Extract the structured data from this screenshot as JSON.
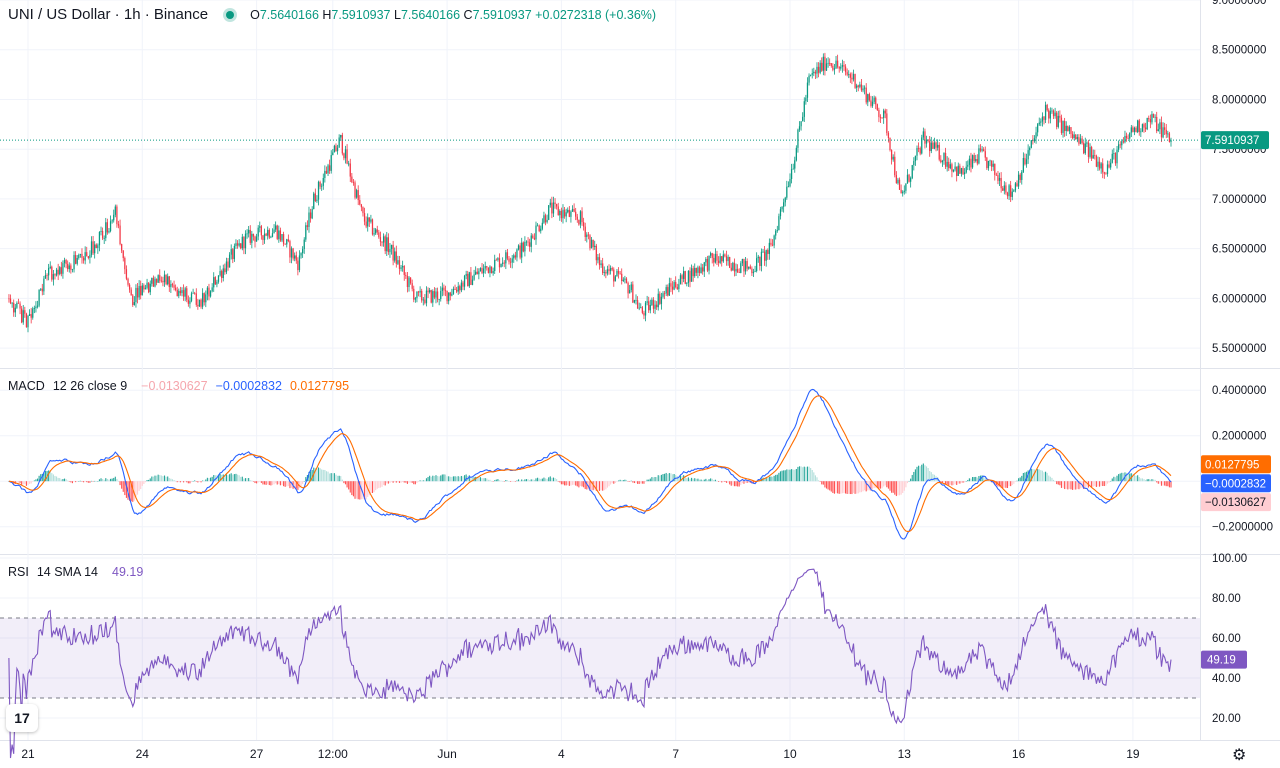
{
  "header": {
    "symbol_title": "UNI / US Dollar · 1h · Binance",
    "o_label": "O",
    "o_value": "7.5640166",
    "h_label": "H",
    "h_value": "7.5910937",
    "l_label": "L",
    "l_value": "7.5640166",
    "c_label": "C",
    "c_value": "7.5910937",
    "change": "+0.0272318 (+0.36%)",
    "up_color": "#089981",
    "down_color": "#f23645"
  },
  "macd_legend": {
    "name": "MACD",
    "params": "12 26 close 9",
    "hist": "−0.0130627",
    "macd": "−0.0002832",
    "signal": "0.0127795"
  },
  "rsi_legend": {
    "name": "RSI",
    "params": "14 SMA 14",
    "value": "49.19"
  },
  "chart_data": [
    {
      "type": "candlestick",
      "title": "UNI / US Dollar · 1h · Binance",
      "last_price": 7.5910937,
      "last_price_label": "7.5910937",
      "ylim": [
        5.3,
        9.0
      ],
      "y_ticks": [
        5.5,
        6.0,
        6.5,
        7.0,
        7.5,
        8.0,
        8.5,
        9.0
      ],
      "y_tick_labels": [
        "5.5000000",
        "6.0000000",
        "6.5000000",
        "7.0000000",
        "7.5000000",
        "8.0000000",
        "8.5000000",
        "9.0000000"
      ],
      "x_tick_labels": [
        "21",
        "24",
        "27",
        "12:00",
        "Jun",
        "4",
        "7",
        "10",
        "13",
        "16",
        "19"
      ],
      "x_tick_positions": [
        0.5,
        3.5,
        6.5,
        8.5,
        11.5,
        14.5,
        17.5,
        20.5,
        23.5,
        26.5,
        29.5
      ],
      "price_path": [
        [
          0.0,
          6.0
        ],
        [
          0.5,
          5.75
        ],
        [
          1.0,
          6.25
        ],
        [
          2.0,
          6.4
        ],
        [
          2.8,
          6.85
        ],
        [
          3.2,
          6.0
        ],
        [
          4.0,
          6.2
        ],
        [
          5.0,
          5.95
        ],
        [
          5.8,
          6.4
        ],
        [
          6.2,
          6.6
        ],
        [
          7.0,
          6.7
        ],
        [
          7.6,
          6.35
        ],
        [
          8.0,
          7.0
        ],
        [
          8.7,
          7.6
        ],
        [
          9.3,
          6.8
        ],
        [
          10.0,
          6.5
        ],
        [
          10.7,
          6.0
        ],
        [
          11.5,
          6.05
        ],
        [
          12.5,
          6.3
        ],
        [
          13.5,
          6.5
        ],
        [
          14.2,
          6.9
        ],
        [
          15.0,
          6.8
        ],
        [
          15.5,
          6.35
        ],
        [
          16.3,
          6.1
        ],
        [
          16.6,
          5.85
        ],
        [
          17.5,
          6.15
        ],
        [
          18.5,
          6.4
        ],
        [
          19.5,
          6.3
        ],
        [
          20.0,
          6.5
        ],
        [
          20.6,
          7.4
        ],
        [
          21.0,
          8.2
        ],
        [
          21.5,
          8.4
        ],
        [
          22.2,
          8.2
        ],
        [
          23.0,
          7.8
        ],
        [
          23.4,
          7.0
        ],
        [
          24.0,
          7.6
        ],
        [
          25.0,
          7.25
        ],
        [
          25.5,
          7.45
        ],
        [
          26.3,
          7.05
        ],
        [
          26.8,
          7.5
        ],
        [
          27.2,
          7.9
        ],
        [
          28.0,
          7.6
        ],
        [
          28.8,
          7.3
        ],
        [
          29.5,
          7.7
        ],
        [
          30.0,
          7.8
        ],
        [
          30.5,
          7.59
        ]
      ]
    },
    {
      "type": "line",
      "title": "MACD 12 26 close 9",
      "ylim": [
        -0.32,
        0.48
      ],
      "y_ticks": [
        -0.2,
        0.0,
        0.2,
        0.4
      ],
      "y_tick_labels": [
        "−0.2000000",
        "",
        "0.2000000",
        "0.4000000"
      ],
      "series": [
        {
          "name": "MACD",
          "color": "#2962ff",
          "last": -0.0002832,
          "last_label": "−0.0002832"
        },
        {
          "name": "Signal",
          "color": "#ff6d00",
          "last": 0.0127795,
          "last_label": "0.0127795"
        },
        {
          "name": "Histogram",
          "color": "#26a69a",
          "last": -0.0130627,
          "last_label": "−0.0130627"
        }
      ]
    },
    {
      "type": "line",
      "title": "RSI 14 SMA 14",
      "ylim": [
        10,
        100
      ],
      "bands": [
        30,
        70
      ],
      "y_ticks": [
        20,
        40,
        60,
        80,
        100
      ],
      "y_tick_labels": [
        "20.00",
        "40.00",
        "60.00",
        "80.00",
        "100.00"
      ],
      "series": [
        {
          "name": "RSI",
          "color": "#7e57c2",
          "last": 49.19,
          "last_label": "49.19"
        }
      ]
    }
  ]
}
